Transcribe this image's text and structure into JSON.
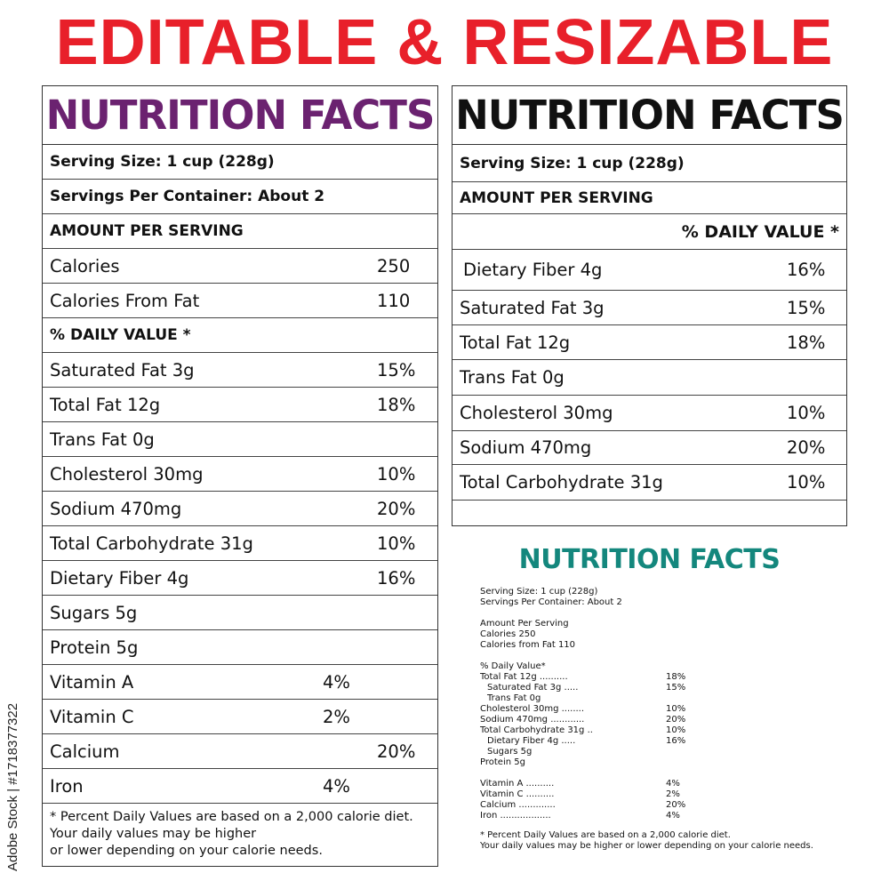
{
  "headline": "EDITABLE & RESIZABLE",
  "colors": {
    "headline": "#e8202a",
    "purple": "#6b2270",
    "black": "#111111",
    "teal": "#14877d"
  },
  "label1": {
    "title": "NUTRITION FACTS",
    "serving_size": "Serving Size: 1 cup (228g)",
    "servings_per_container": "Servings Per Container: About 2",
    "amount_per_serving": "AMOUNT PER SERVING",
    "calories": {
      "label": "Calories",
      "value": "250"
    },
    "calories_from_fat": {
      "label": "Calories From Fat",
      "value": "110"
    },
    "daily_value_header": "% DAILY VALUE *",
    "nutrients": [
      {
        "label": "Saturated Fat 3g",
        "value": "15%"
      },
      {
        "label": "Total Fat 12g",
        "value": "18%"
      },
      {
        "label": "Trans Fat 0g",
        "value": ""
      },
      {
        "label": "Cholesterol 30mg",
        "value": "10%"
      },
      {
        "label": "Sodium 470mg",
        "value": "20%"
      },
      {
        "label": "Total Carbohydrate 31g",
        "value": "10%"
      },
      {
        "label": "Dietary Fiber 4g",
        "value": "16%"
      },
      {
        "label": "Sugars 5g",
        "value": ""
      },
      {
        "label": "Protein 5g",
        "value": ""
      }
    ],
    "vitamins": [
      {
        "label": "Vitamin A",
        "value": "4%"
      },
      {
        "label": "Vitamin C",
        "value": "2%"
      },
      {
        "label": "Calcium",
        "value": "20%"
      },
      {
        "label": "Iron",
        "value": "4%"
      }
    ],
    "footnote": [
      "* Percent Daily Values are based on a 2,000 calorie diet.",
      "Your daily values may be higher",
      "or lower depending on your calorie needs."
    ]
  },
  "label2": {
    "title": "NUTRITION FACTS",
    "serving_size": "Serving Size: 1 cup (228g)",
    "amount_per_serving": "AMOUNT PER SERVING",
    "daily_value_header": "% DAILY VALUE *",
    "nutrients": [
      {
        "label": "Dietary Fiber 4g",
        "value": "16%"
      },
      {
        "label": "Saturated Fat 3g",
        "value": "15%"
      },
      {
        "label": "Total Fat 12g",
        "value": "18%"
      },
      {
        "label": "Trans Fat 0g",
        "value": ""
      },
      {
        "label": "Cholesterol 30mg",
        "value": "10%"
      },
      {
        "label": "Sodium 470mg",
        "value": "20%"
      },
      {
        "label": "Total Carbohydrate 31g",
        "value": "10%"
      }
    ]
  },
  "label3": {
    "title": "NUTRITION FACTS",
    "serving_size": "Serving Size: 1 cup (228g)",
    "servings_per_container": "Servings Per Container: About 2",
    "amount_per_serving": "Amount Per Serving",
    "calories": "Calories 250",
    "calories_from_fat": "Calories from Fat 110",
    "daily_value_header": "% Daily Value*",
    "nutrients": [
      {
        "label": "Total Fat 12g ..........",
        "value": "18%"
      },
      {
        "label": "Saturated Fat 3g .....",
        "value": "15%"
      },
      {
        "label": "Trans Fat 0g",
        "value": ""
      },
      {
        "label": "Cholesterol 30mg ........",
        "value": "10%"
      },
      {
        "label": "Sodium 470mg ............",
        "value": "20%"
      },
      {
        "label": "Total Carbohydrate 31g ..",
        "value": "10%"
      },
      {
        "label": "Dietary Fiber 4g .....",
        "value": "16%"
      },
      {
        "label": "Sugars 5g",
        "value": ""
      },
      {
        "label": "Protein 5g",
        "value": ""
      }
    ],
    "vitamins": [
      {
        "label": "Vitamin A ..........",
        "value": "4%"
      },
      {
        "label": "Vitamin C ..........",
        "value": "2%"
      },
      {
        "label": "Calcium .............",
        "value": "20%"
      },
      {
        "label": "Iron ..................",
        "value": "4%"
      }
    ],
    "footnote": [
      "* Percent Daily Values are based on a 2,000 calorie diet.",
      "Your daily values may be higher or lower depending on your calorie needs."
    ]
  },
  "watermark": "Adobe Stock | #1718377322"
}
